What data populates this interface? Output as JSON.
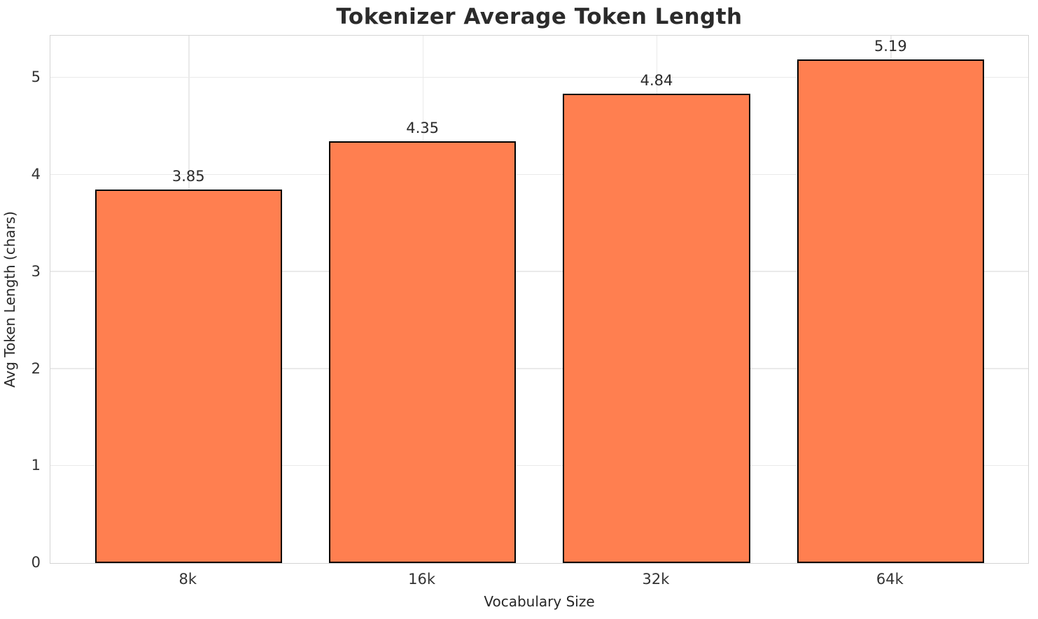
{
  "chart_data": {
    "type": "bar",
    "title": "Tokenizer Average Token Length",
    "xlabel": "Vocabulary Size",
    "ylabel": "Avg Token Length (chars)",
    "categories": [
      "8k",
      "16k",
      "32k",
      "64k"
    ],
    "values": [
      3.85,
      4.35,
      4.84,
      5.19
    ],
    "value_labels": [
      "3.85",
      "4.35",
      "4.84",
      "5.19"
    ],
    "yticks": [
      0,
      1,
      2,
      3,
      4,
      5
    ],
    "ylim": [
      0,
      5.45
    ],
    "grid": "both",
    "legend": "none",
    "colors": {
      "bar_fill": "#FF7F50",
      "bar_edge": "#000000",
      "grid": "#eaeaea",
      "spine": "#d4d4d4",
      "title_text": "#2b2b2b",
      "tick_text": "#333333",
      "label_text": "#262626",
      "background": "#ffffff"
    }
  }
}
